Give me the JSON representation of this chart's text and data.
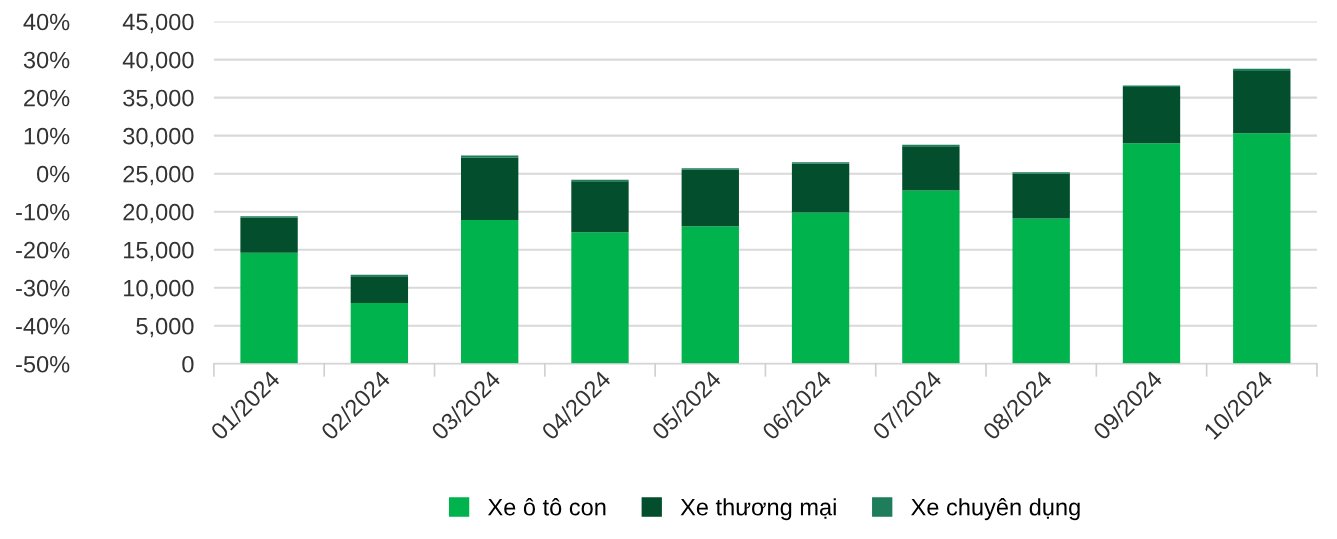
{
  "chart_data": {
    "type": "bar",
    "stacked": true,
    "categories": [
      "01/2024",
      "02/2024",
      "03/2024",
      "04/2024",
      "05/2024",
      "06/2024",
      "07/2024",
      "08/2024",
      "09/2024",
      "10/2024"
    ],
    "series": [
      {
        "name": "Xe ô tô con",
        "color": "#00b34d",
        "values": [
          14600,
          8000,
          18900,
          17300,
          18100,
          19900,
          22800,
          19100,
          29000,
          30300
        ]
      },
      {
        "name": "Xe thương mại",
        "color": "#034f2d",
        "values": [
          4600,
          3500,
          8200,
          6700,
          7400,
          6400,
          5800,
          5900,
          7400,
          8200
        ]
      },
      {
        "name": "Xe chuyên dụng",
        "color": "#1e7d5a",
        "values": [
          200,
          200,
          300,
          200,
          200,
          200,
          200,
          200,
          200,
          300
        ]
      }
    ],
    "ylim": [
      0,
      45000
    ],
    "yticks": [
      {
        "value": 0,
        "label": "0"
      },
      {
        "value": 5000,
        "label": "5,000"
      },
      {
        "value": 10000,
        "label": "10,000"
      },
      {
        "value": 15000,
        "label": "15,000"
      },
      {
        "value": 20000,
        "label": "20,000"
      },
      {
        "value": 25000,
        "label": "25,000"
      },
      {
        "value": 30000,
        "label": "30,000"
      },
      {
        "value": 35000,
        "label": "35,000"
      },
      {
        "value": 40000,
        "label": "40,000"
      },
      {
        "value": 45000,
        "label": "45,000"
      }
    ],
    "y2lim": [
      -50,
      40
    ],
    "y2ticks": [
      {
        "value": -50,
        "label": "-50%"
      },
      {
        "value": -40,
        "label": "-40%"
      },
      {
        "value": -30,
        "label": "-30%"
      },
      {
        "value": -20,
        "label": "-20%"
      },
      {
        "value": -10,
        "label": "-10%"
      },
      {
        "value": 0,
        "label": "0%"
      },
      {
        "value": 10,
        "label": "10%"
      },
      {
        "value": 20,
        "label": "20%"
      },
      {
        "value": 30,
        "label": "30%"
      },
      {
        "value": 40,
        "label": "40%"
      }
    ],
    "grid": "y",
    "legend": "bottom"
  }
}
